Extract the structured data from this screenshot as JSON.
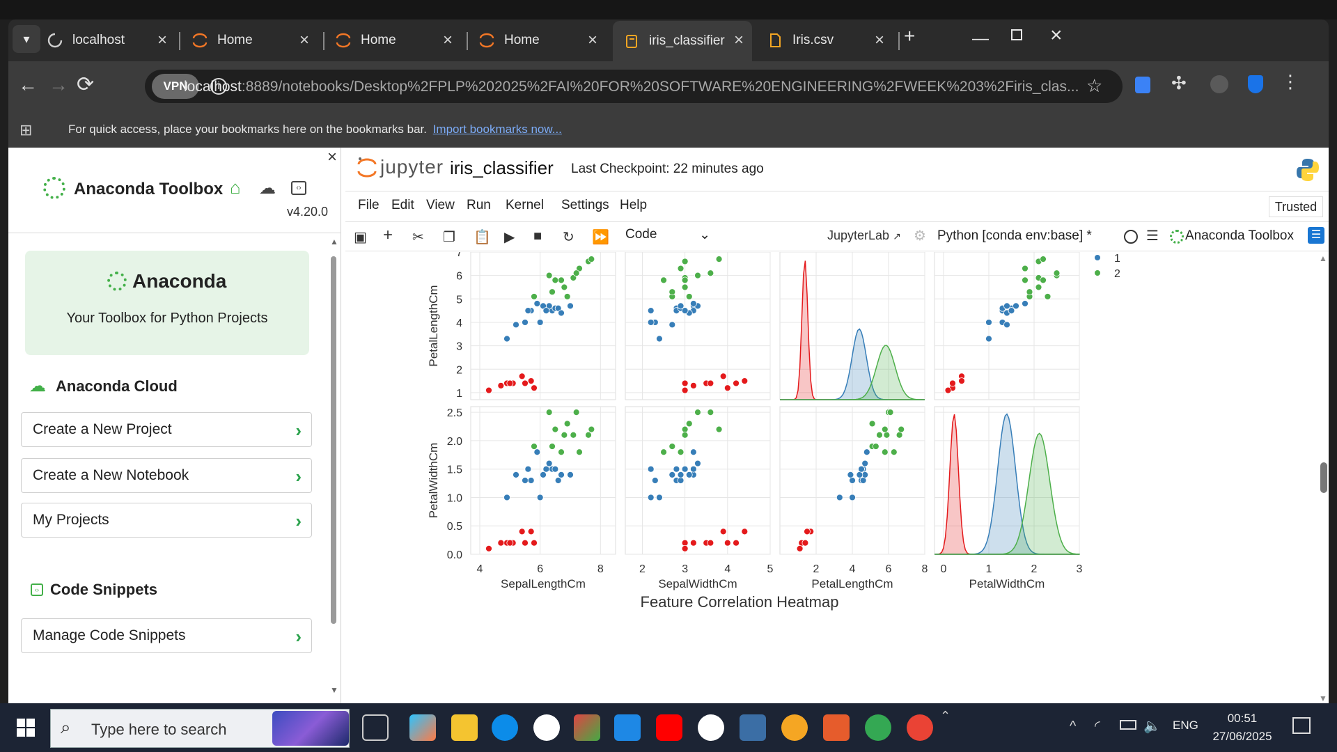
{
  "browser": {
    "tabs": [
      {
        "label": "localhost"
      },
      {
        "label": "Home"
      },
      {
        "label": "Home"
      },
      {
        "label": "Home"
      },
      {
        "label": "iris_classifier"
      },
      {
        "label": "Iris.csv"
      }
    ],
    "vpn_label": "VPN",
    "url_host": "localhost",
    "url_path": ":8889/notebooks/Desktop%2FPLP%202025%2FAI%20FOR%20SOFTWARE%20ENGINEERING%2FWEEK%203%2Firis_clas...",
    "bookmarks_text": "For quick access, place your bookmarks here on the bookmarks bar.",
    "bookmarks_link": "Import bookmarks now..."
  },
  "sidebar": {
    "title": "Anaconda Toolbox",
    "version": "v4.20.0",
    "hero_title": "Anaconda",
    "hero_subtitle": "Your Toolbox for Python Projects",
    "cloud_heading": "Anaconda Cloud",
    "cloud_items": [
      "Create a New Project",
      "Create a New Notebook",
      "My Projects"
    ],
    "snippets_heading": "Code Snippets",
    "snippets_items": [
      "Manage Code Snippets"
    ]
  },
  "notebook": {
    "brand": "jupyter",
    "name": "iris_classifier",
    "checkpoint": "Last Checkpoint: 22 minutes ago",
    "trusted": "Trusted",
    "menu": [
      "File",
      "Edit",
      "View",
      "Run",
      "Kernel",
      "Settings",
      "Help"
    ],
    "cell_type": "Code",
    "jupyterlab_link": "JupyterLab",
    "kernel": "Python [conda env:base] *",
    "toolbox_label": "Anaconda Toolbox",
    "next_title": "Feature Correlation Heatmap"
  },
  "chart_data": {
    "type": "scatter",
    "title": "",
    "variables": [
      "SepalLengthCm",
      "SepalWidthCm",
      "PetalLengthCm",
      "PetalWidthCm"
    ],
    "rows_shown": [
      "PetalLengthCm",
      "PetalWidthCm"
    ],
    "legend": [
      "1",
      "2"
    ],
    "legend_position": "top-right",
    "colors": {
      "class0": "#e41a1c",
      "class1": "#377eb8",
      "class2": "#4daf4a"
    },
    "row_ylim": {
      "PetalLengthCm": [
        0.7,
        7.0
      ],
      "PetalWidthCm": [
        0.0,
        2.6
      ]
    },
    "row_yticks": {
      "PetalLengthCm": [
        "1",
        "2",
        "3",
        "4",
        "5",
        "6",
        "7"
      ],
      "PetalWidthCm": [
        "0.0",
        "0.5",
        "1.0",
        "1.5",
        "2.0",
        "2.5"
      ]
    },
    "col_xticks": {
      "SepalLengthCm": [
        "4",
        "6",
        "8"
      ],
      "SepalWidthCm": [
        "2",
        "3",
        "4",
        "5"
      ],
      "PetalLengthCm": [
        "2",
        "4",
        "6",
        "8"
      ],
      "PetalWidthCm": [
        "0",
        "1",
        "2",
        "3"
      ]
    },
    "col_xlim": {
      "SepalLengthCm": [
        3.7,
        8.5
      ],
      "SepalWidthCm": [
        1.6,
        5.0
      ],
      "PetalLengthCm": [
        0.0,
        8.0
      ],
      "PetalWidthCm": [
        -0.2,
        3.0
      ]
    },
    "sample_points": {
      "sepal_length": [
        5.1,
        4.9,
        4.7,
        5.0,
        5.4,
        5.8,
        4.3,
        5.7,
        5.5,
        7.0,
        6.4,
        5.5,
        6.5,
        5.7,
        6.3,
        4.9,
        6.6,
        5.2,
        6.0,
        6.1,
        6.7,
        5.6,
        5.9,
        6.2,
        6.3,
        5.8,
        7.1,
        6.5,
        7.6,
        7.3,
        6.7,
        7.2,
        7.7,
        6.9,
        6.4,
        6.8
      ],
      "sepal_width": [
        3.5,
        3.0,
        3.2,
        3.6,
        3.9,
        4.0,
        3.0,
        4.4,
        4.2,
        3.2,
        3.2,
        2.3,
        2.8,
        2.8,
        3.3,
        2.4,
        2.9,
        2.7,
        2.2,
        2.9,
        3.1,
        3.0,
        3.2,
        2.2,
        3.3,
        2.7,
        3.0,
        3.0,
        3.0,
        2.9,
        2.5,
        3.6,
        3.8,
        3.1,
        2.7,
        3.0
      ],
      "petal_length": [
        1.4,
        1.4,
        1.3,
        1.4,
        1.7,
        1.2,
        1.1,
        1.5,
        1.4,
        4.7,
        4.5,
        4.0,
        4.6,
        4.5,
        4.7,
        3.3,
        4.6,
        3.9,
        4.0,
        4.7,
        4.4,
        4.5,
        4.8,
        4.5,
        6.0,
        5.1,
        5.9,
        5.8,
        6.6,
        6.3,
        5.8,
        6.1,
        6.7,
        5.1,
        5.3,
        5.5
      ],
      "petal_width": [
        0.2,
        0.2,
        0.2,
        0.2,
        0.4,
        0.2,
        0.1,
        0.4,
        0.2,
        1.4,
        1.5,
        1.3,
        1.5,
        1.3,
        1.6,
        1.0,
        1.3,
        1.4,
        1.0,
        1.4,
        1.4,
        1.5,
        1.8,
        1.5,
        2.5,
        1.9,
        2.1,
        2.2,
        2.1,
        1.8,
        1.8,
        2.5,
        2.2,
        2.3,
        1.9,
        2.1
      ],
      "species": [
        0,
        0,
        0,
        0,
        0,
        0,
        0,
        0,
        0,
        1,
        1,
        1,
        1,
        1,
        1,
        1,
        1,
        1,
        1,
        1,
        1,
        1,
        1,
        1,
        2,
        2,
        2,
        2,
        2,
        2,
        2,
        2,
        2,
        2,
        2,
        2
      ]
    }
  },
  "taskbar": {
    "search_placeholder": "Type here to search",
    "lang": "ENG",
    "time": "00:51",
    "date": "27/06/2025"
  }
}
